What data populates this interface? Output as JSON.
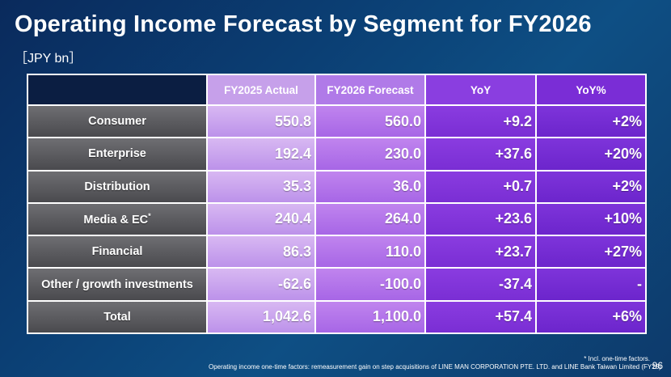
{
  "slide": {
    "title": "Operating Income Forecast by Segment for FY2026",
    "unit": "［JPY bn］",
    "page_number": "96"
  },
  "table": {
    "headers": [
      "",
      "FY2025 Actual",
      "FY2026 Forecast",
      "YoY",
      "YoY%"
    ],
    "rows": [
      {
        "segment": "Consumer",
        "marker": "",
        "fy2025": "550.8",
        "fy2026": "560.0",
        "yoy": "+9.2",
        "yoy_pct": "+2%"
      },
      {
        "segment": "Enterprise",
        "marker": "",
        "fy2025": "192.4",
        "fy2026": "230.0",
        "yoy": "+37.6",
        "yoy_pct": "+20%"
      },
      {
        "segment": "Distribution",
        "marker": "",
        "fy2025": "35.3",
        "fy2026": "36.0",
        "yoy": "+0.7",
        "yoy_pct": "+2%"
      },
      {
        "segment": "Media & EC",
        "marker": "*",
        "fy2025": "240.4",
        "fy2026": "264.0",
        "yoy": "+23.6",
        "yoy_pct": "+10%"
      },
      {
        "segment": "Financial",
        "marker": "",
        "fy2025": "86.3",
        "fy2026": "110.0",
        "yoy": "+23.7",
        "yoy_pct": "+27%"
      },
      {
        "segment": "Other / growth investments",
        "marker": "",
        "fy2025": "-62.6",
        "fy2026": "-100.0",
        "yoy": "-37.4",
        "yoy_pct": "-"
      },
      {
        "segment": "Total",
        "marker": "",
        "fy2025": "1,042.6",
        "fy2026": "1,100.0",
        "yoy": "+57.4",
        "yoy_pct": "+6%"
      }
    ]
  },
  "footnotes": {
    "asterisk_note": "* Incl. one-time factors.",
    "one_time_factors": "Operating income one-time factors: remeasurement gain on step acquisitions of LINE MAN CORPORATION PTE. LTD. and LINE Bank Taiwan Limited (FY25)"
  },
  "colors": {
    "background": "#0b3f74",
    "label_cell": "#5c5c60",
    "actual_col": "#c6a0ea",
    "forecast_col": "#b07ae8",
    "yoy_col": "#8a3ee0",
    "yoy_pct_col": "#7a2dd6"
  }
}
